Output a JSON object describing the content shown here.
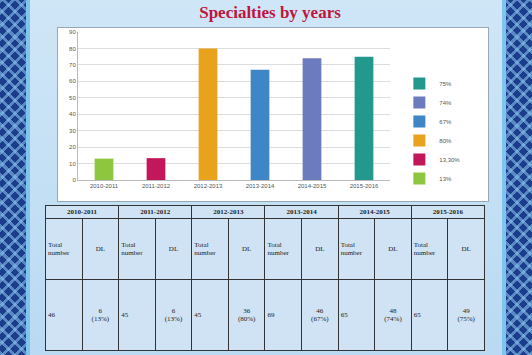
{
  "chart_data": {
    "type": "bar",
    "title": "Specialties by years",
    "categories": [
      "2010-2011",
      "2011-2012",
      "2012-2013",
      "2013-2014",
      "2014-2015",
      "2015-2016"
    ],
    "series": [
      {
        "name": "13%",
        "color": "#8dc63f",
        "values": [
          13,
          null,
          null,
          null,
          null,
          null
        ]
      },
      {
        "name": "13,30%",
        "color": "#c2185b",
        "values": [
          null,
          13.3,
          null,
          null,
          null,
          null
        ]
      },
      {
        "name": "80%",
        "color": "#e8a21c",
        "values": [
          null,
          null,
          80,
          null,
          null,
          null
        ]
      },
      {
        "name": "67%",
        "color": "#3f86c7",
        "values": [
          null,
          null,
          null,
          67,
          null,
          null
        ]
      },
      {
        "name": "74%",
        "color": "#6c7bbd",
        "values": [
          null,
          null,
          null,
          null,
          74,
          null
        ]
      },
      {
        "name": "75%",
        "color": "#23998e",
        "values": [
          null,
          null,
          null,
          null,
          null,
          75
        ]
      }
    ],
    "ylim": [
      0,
      90
    ],
    "yticks": [
      0,
      10,
      20,
      30,
      40,
      50,
      60,
      70,
      80,
      90
    ],
    "grid": true,
    "legend": "right"
  },
  "table": {
    "columns": [
      {
        "year": "2010-2011",
        "total_label": "Total number",
        "dl_label": "DL",
        "total": 46,
        "dl": 6,
        "dl_pct": "(13%)"
      },
      {
        "year": "2011-2012",
        "total_label": "Total number",
        "dl_label": "DL",
        "total": 45,
        "dl": 6,
        "dl_pct": "(13%)"
      },
      {
        "year": "2012-2013",
        "total_label": "Total number",
        "dl_label": "DL",
        "total": 45,
        "dl": 36,
        "dl_pct": "(80%)"
      },
      {
        "year": "2013-2014",
        "total_label": "Total number",
        "dl_label": "DL",
        "total": 69,
        "dl": 46,
        "dl_pct": "(67%)"
      },
      {
        "year": "2014-2015",
        "total_label": "Total number",
        "dl_label": "DL",
        "total": 65,
        "dl": 48,
        "dl_pct": "(74%)"
      },
      {
        "year": "2015-2016",
        "total_label": "Total number",
        "dl_label": "DL",
        "total": 65,
        "dl": 49,
        "dl_pct": "(75%)"
      }
    ]
  }
}
